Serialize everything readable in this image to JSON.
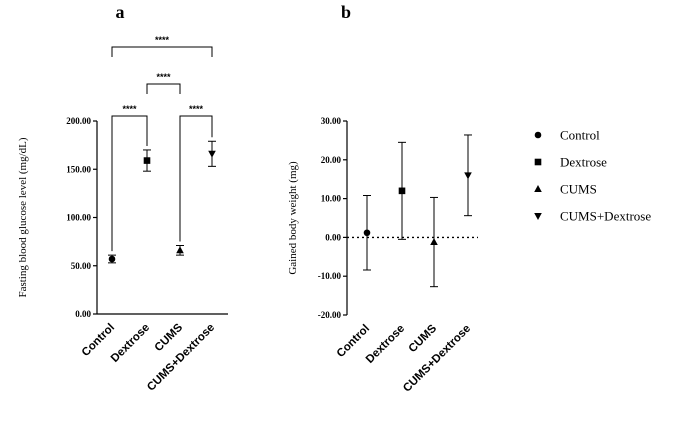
{
  "figure": {
    "colors": {
      "ink": "#000000",
      "background": "#ffffff"
    }
  },
  "legend": {
    "placement": "right",
    "items": [
      {
        "label": "Control",
        "marker": "circle"
      },
      {
        "label": "Dextrose",
        "marker": "square"
      },
      {
        "label": "CUMS",
        "marker": "triangle-up"
      },
      {
        "label": "CUMS+Dextrose",
        "marker": "triangle-down"
      }
    ]
  },
  "chart_data": [
    {
      "panel": "a",
      "type": "scatter",
      "categories": [
        "Control",
        "Dextrose",
        "CUMS",
        "CUMS+Dextrose"
      ],
      "markers": [
        "circle",
        "square",
        "triangle-up",
        "triangle-down"
      ],
      "values": [
        57,
        159,
        66,
        166
      ],
      "err": [
        4,
        11,
        5,
        13
      ],
      "ylabel": "Fasting blood glucose level (mg/dL)",
      "ylim": [
        0,
        200
      ],
      "yticks": [
        "0.00",
        "50.00",
        "100.00",
        "150.00",
        "200.00"
      ],
      "grid": false,
      "significance": [
        {
          "from": 0,
          "to": 1,
          "label": "****",
          "level": 1
        },
        {
          "from": 2,
          "to": 3,
          "label": "****",
          "level": 1
        },
        {
          "from": 1,
          "to": 2,
          "label": "****",
          "level": 2
        },
        {
          "from": 0,
          "to": 3,
          "label": "****",
          "level": 3
        }
      ]
    },
    {
      "panel": "b",
      "type": "scatter",
      "categories": [
        "Control",
        "Dextrose",
        "CUMS",
        "CUMS+Dextrose"
      ],
      "markers": [
        "circle",
        "square",
        "triangle-up",
        "triangle-down"
      ],
      "values": [
        1.2,
        12.0,
        -1.2,
        16.0
      ],
      "err": [
        9.6,
        12.5,
        11.5,
        10.4
      ],
      "ylabel": "Gained body weight (mg)",
      "ylim": [
        -20,
        30
      ],
      "yticks": [
        "-20.00",
        "-10.00",
        "0.00",
        "10.00",
        "20.00",
        "30.00"
      ],
      "zero_line": "dotted",
      "grid": false
    }
  ]
}
